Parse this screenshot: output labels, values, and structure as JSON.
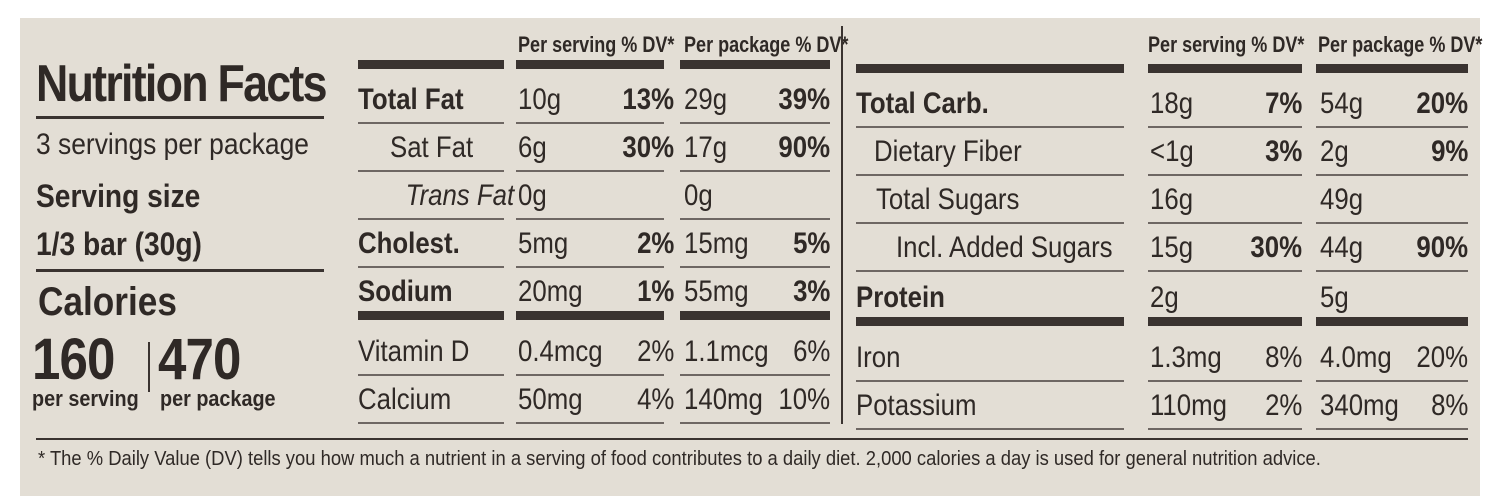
{
  "title": "Nutrition Facts",
  "servings": "3 servings per package",
  "serving_size_label": "Serving size",
  "serving_size_value": "1/3 bar (30g)",
  "calories": {
    "label": "Calories",
    "per_serving": "160",
    "per_package": "470",
    "per_serving_label": "per serving",
    "per_package_label": "per package"
  },
  "headers": {
    "per_serving": "Per serving % DV*",
    "per_package": "Per package % DV*"
  },
  "left_table": [
    {
      "name": "Total Fat",
      "serving_amount": "10g",
      "serving_dv": "13%",
      "package_amount": "29g",
      "package_dv": "39%"
    },
    {
      "name": "Sat Fat",
      "serving_amount": "6g",
      "serving_dv": "30%",
      "package_amount": "17g",
      "package_dv": "90%"
    },
    {
      "name": "Trans Fat",
      "serving_amount": "0g",
      "serving_dv": "",
      "package_amount": "0g",
      "package_dv": ""
    },
    {
      "name": "Cholest.",
      "serving_amount": "5mg",
      "serving_dv": "2%",
      "package_amount": "15mg",
      "package_dv": "5%"
    },
    {
      "name": "Sodium",
      "serving_amount": "20mg",
      "serving_dv": "1%",
      "package_amount": "55mg",
      "package_dv": "3%"
    },
    {
      "name": "Vitamin D",
      "serving_amount": "0.4mcg",
      "serving_dv": "2%",
      "package_amount": "1.1mcg",
      "package_dv": "6%"
    },
    {
      "name": "Calcium",
      "serving_amount": "50mg",
      "serving_dv": "4%",
      "package_amount": "140mg",
      "package_dv": "10%"
    }
  ],
  "right_table": [
    {
      "name": "Total Carb.",
      "serving_amount": "18g",
      "serving_dv": "7%",
      "package_amount": "54g",
      "package_dv": "20%"
    },
    {
      "name": "Dietary Fiber",
      "serving_amount": "<1g",
      "serving_dv": "3%",
      "package_amount": "2g",
      "package_dv": "9%"
    },
    {
      "name": "Total Sugars",
      "serving_amount": "16g",
      "serving_dv": "",
      "package_amount": "49g",
      "package_dv": ""
    },
    {
      "name": "Incl. Added Sugars",
      "serving_amount": "15g",
      "serving_dv": "30%",
      "package_amount": "44g",
      "package_dv": "90%"
    },
    {
      "name": "Protein",
      "serving_amount": "2g",
      "serving_dv": "",
      "package_amount": "5g",
      "package_dv": ""
    },
    {
      "name": "Iron",
      "serving_amount": "1.3mg",
      "serving_dv": "8%",
      "package_amount": "4.0mg",
      "package_dv": "20%"
    },
    {
      "name": "Potassium",
      "serving_amount": "110mg",
      "serving_dv": "2%",
      "package_amount": "340mg",
      "package_dv": "8%"
    }
  ],
  "footnote": "* The % Daily Value (DV) tells you how much a nutrient in a serving of food contributes to a daily diet. 2,000 calories a day is used for general nutrition advice.",
  "colors": {
    "panel": "#e3ded5",
    "ink": "#2f2926"
  }
}
